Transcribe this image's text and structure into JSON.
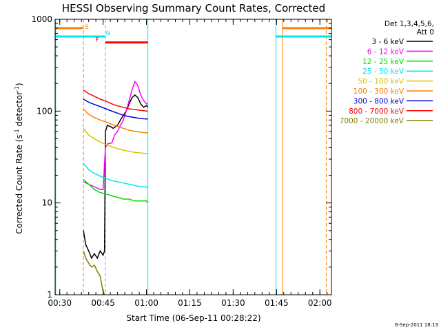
{
  "chart_data": {
    "type": "line",
    "title": "HESSI Observing Summary Count Rates, Corrected",
    "xlabel": "Start Time (06-Sep-11 00:28:22)",
    "ylabel_main": "Corrected Count Rate (s",
    "ylabel_sup1": "-1",
    "ylabel_mid": " detector",
    "ylabel_sup2": "-1",
    "ylabel_end": ")",
    "footer": "6-Sep-2011 18:13",
    "y_scale": "log",
    "ylim": [
      1,
      1000
    ],
    "xlim_minutes": [
      28.4,
      124
    ],
    "x_ticks": [
      {
        "m": 30,
        "label": "00:30"
      },
      {
        "m": 45,
        "label": "00:45"
      },
      {
        "m": 60,
        "label": "01:00"
      },
      {
        "m": 75,
        "label": "01:15"
      },
      {
        "m": 90,
        "label": "01:30"
      },
      {
        "m": 105,
        "label": "01:45"
      },
      {
        "m": 120,
        "label": "02:00"
      }
    ],
    "y_ticks": [
      {
        "v": 1,
        "label": "1"
      },
      {
        "v": 10,
        "label": "10"
      },
      {
        "v": 100,
        "label": "100"
      },
      {
        "v": 1000,
        "label": "1000"
      }
    ],
    "legend": {
      "header": [
        "Det 1,3,4,5,6,",
        "Att 0"
      ],
      "entries": [
        {
          "label": "3 - 6 keV",
          "color": "#000000"
        },
        {
          "label": "6 - 12 keV",
          "color": "#ff00ff"
        },
        {
          "label": "12 - 25 keV",
          "color": "#00dd00"
        },
        {
          "label": "25 - 50 keV",
          "color": "#00e5ee"
        },
        {
          "label": "50 - 100 keV",
          "color": "#d4c400"
        },
        {
          "label": "100 - 300 keV",
          "color": "#ff7f00"
        },
        {
          "label": "300 - 800 keV",
          "color": "#0000dd"
        },
        {
          "label": "800 - 7000 keV",
          "color": "#ff0000"
        },
        {
          "label": "7000 - 20000 keV",
          "color": "#7f7f00"
        }
      ]
    },
    "flags": [
      {
        "label": "S",
        "color": "#ff7f00",
        "value": 800,
        "segments": [
          [
            28.4,
            38.2
          ],
          [
            107,
            124
          ]
        ]
      },
      {
        "label": "N",
        "color": "#00e5ee",
        "value": 650,
        "segments": [
          [
            28.4,
            45.8
          ],
          [
            104.8,
            124
          ]
        ]
      },
      {
        "label": "F",
        "color": "#ff0000",
        "value": 560,
        "segments": [
          [
            45.8,
            60.5
          ]
        ]
      }
    ],
    "vertical_markers": [
      {
        "m": 28.6,
        "color": "#00e5ee",
        "style": "solid"
      },
      {
        "m": 38.2,
        "color": "#ff7f00",
        "style": "dashed"
      },
      {
        "m": 45.8,
        "color": "#00e5ee",
        "style": "dashed"
      },
      {
        "m": 60.5,
        "color": "#00e5ee",
        "style": "solid"
      },
      {
        "m": 104.8,
        "color": "#00e5ee",
        "style": "solid"
      },
      {
        "m": 107.0,
        "color": "#ff7f00",
        "style": "solid"
      },
      {
        "m": 122.2,
        "color": "#ff7f00",
        "style": "dashed"
      }
    ],
    "series": [
      {
        "name": "3 - 6 keV",
        "color": "#000000",
        "x": [
          38.2,
          39,
          40,
          41,
          42,
          43,
          44,
          45,
          45.5,
          45.8,
          46.5,
          47.5,
          48.5,
          50,
          51,
          52,
          53,
          54,
          55,
          56,
          57,
          58,
          59,
          60,
          60.5
        ],
        "y": [
          5,
          3.5,
          3,
          2.5,
          2.8,
          2.5,
          3,
          2.7,
          3,
          60,
          70,
          68,
          65,
          70,
          80,
          90,
          100,
          120,
          140,
          150,
          140,
          120,
          110,
          115,
          110
        ]
      },
      {
        "name": "6 - 12 keV",
        "color": "#ff00ff",
        "x": [
          38.2,
          40,
          42,
          44,
          45,
          45.8,
          46.5,
          48,
          49,
          50,
          51,
          52,
          53,
          54,
          55,
          56,
          57,
          58,
          59,
          60,
          60.5
        ],
        "y": [
          17,
          16,
          15,
          14,
          14,
          40,
          44,
          45,
          55,
          60,
          70,
          80,
          100,
          130,
          170,
          210,
          190,
          150,
          130,
          120,
          120
        ]
      },
      {
        "name": "12 - 25 keV",
        "color": "#00dd00",
        "x": [
          38.2,
          40,
          42,
          44,
          46,
          48,
          50,
          52,
          54,
          56,
          58,
          60,
          60.5
        ],
        "y": [
          18,
          16,
          14,
          13,
          12.5,
          12,
          11.5,
          11,
          11,
          10.5,
          10.5,
          10.5,
          10
        ]
      },
      {
        "name": "25 - 50 keV",
        "color": "#00e5ee",
        "x": [
          38.2,
          40,
          42,
          44,
          46,
          48,
          50,
          52,
          54,
          56,
          58,
          60,
          60.5
        ],
        "y": [
          27,
          23,
          21,
          19.5,
          18.5,
          17.5,
          17,
          16.5,
          16,
          15.5,
          15,
          15,
          14.5
        ]
      },
      {
        "name": "50 - 100 keV",
        "color": "#d4c400",
        "x": [
          38.2,
          40,
          42,
          44,
          46,
          48,
          50,
          52,
          54,
          56,
          58,
          60,
          60.5
        ],
        "y": [
          65,
          55,
          50,
          46,
          43,
          41,
          39,
          37.5,
          36.5,
          35.5,
          35,
          34.5,
          34
        ]
      },
      {
        "name": "100 - 300 keV",
        "color": "#ff7f00",
        "x": [
          38.2,
          40,
          42,
          44,
          46,
          48,
          50,
          52,
          54,
          56,
          58,
          60,
          60.5
        ],
        "y": [
          105,
          92,
          85,
          80,
          76,
          72,
          68,
          65,
          62,
          60,
          59,
          58,
          58
        ]
      },
      {
        "name": "300 - 800 keV",
        "color": "#0000dd",
        "x": [
          38.2,
          40,
          42,
          44,
          46,
          48,
          50,
          52,
          54,
          56,
          58,
          60,
          60.5
        ],
        "y": [
          135,
          125,
          118,
          112,
          106,
          100,
          95,
          90,
          87,
          85,
          83,
          82,
          82
        ]
      },
      {
        "name": "800 - 7000 keV",
        "color": "#ff0000",
        "x": [
          38.2,
          40,
          42,
          44,
          46,
          48,
          50,
          52,
          54,
          56,
          58,
          60,
          60.5
        ],
        "y": [
          170,
          155,
          145,
          135,
          128,
          120,
          114,
          110,
          106,
          104,
          102,
          100,
          100
        ]
      },
      {
        "name": "7000 - 20000 keV",
        "color": "#7f7f00",
        "x": [
          38.2,
          39,
          40,
          41,
          42,
          43,
          44,
          44.5,
          45,
          45.5
        ],
        "y": [
          3,
          2.5,
          2.2,
          2,
          2.1,
          1.8,
          1.6,
          1.3,
          1.1,
          1
        ]
      }
    ]
  }
}
